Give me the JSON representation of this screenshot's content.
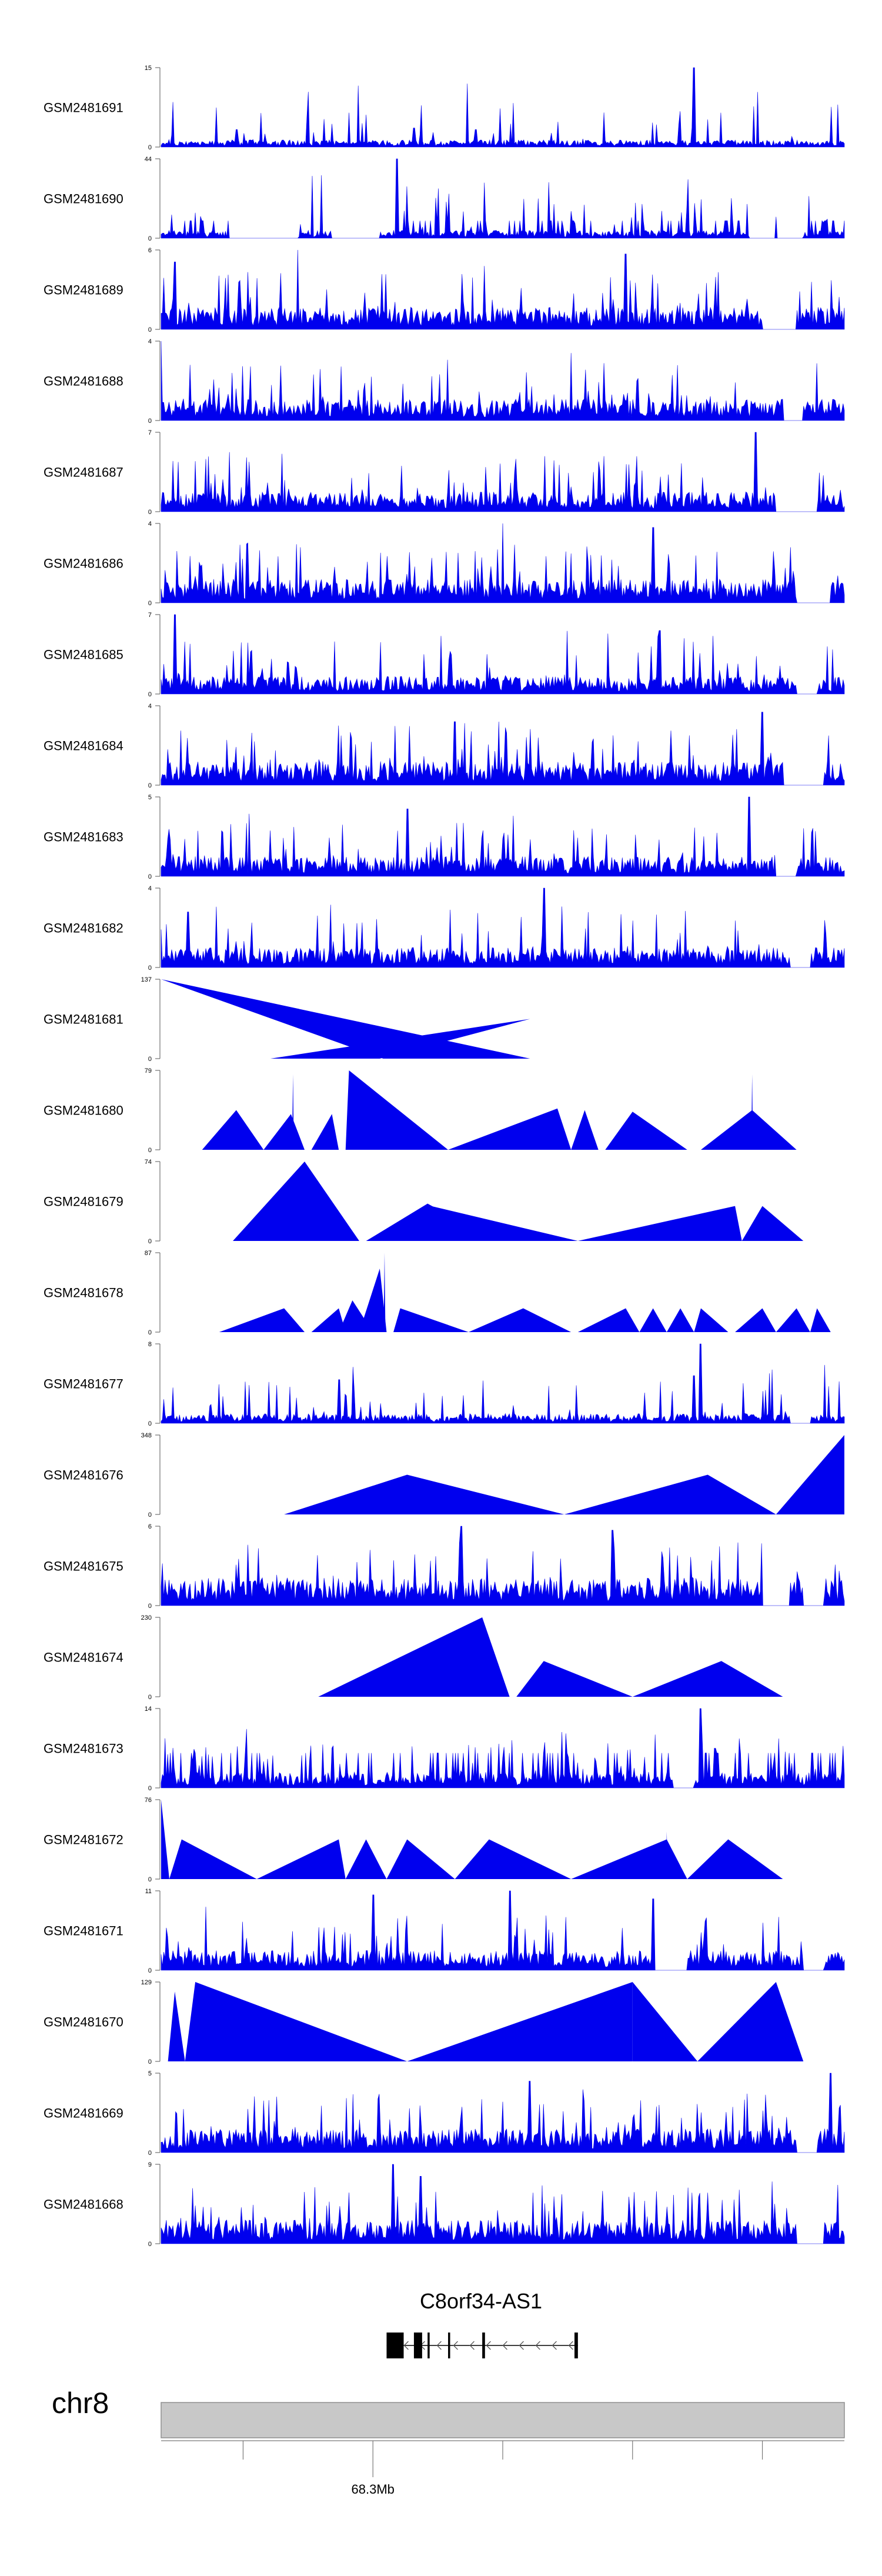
{
  "chart_data": {
    "type": "area",
    "colors": {
      "signal": "#0000ee",
      "axis": "#555555",
      "ideogram": "#c8c8c8"
    },
    "tracks": [
      {
        "name": "GSM2481691",
        "ylim": [
          0,
          15
        ],
        "mode": "dense",
        "baseline": 0.09,
        "peaks": [
          [
            0.78,
            1.0
          ],
          [
            0.37,
            0.24
          ],
          [
            0.11,
            0.22
          ],
          [
            0.46,
            0.22
          ]
        ]
      },
      {
        "name": "GSM2481690",
        "ylim": [
          0,
          44
        ],
        "mode": "dense-tent",
        "baseline": 0.1,
        "peaks": [
          [
            0.345,
            1.0
          ],
          [
            0.05,
            0.32
          ],
          [
            0.9,
            0.27
          ]
        ],
        "gaps": [
          [
            0.1,
            0.2
          ],
          [
            0.25,
            0.32
          ],
          [
            0.86,
            0.94
          ]
        ]
      },
      {
        "name": "GSM2481689",
        "ylim": [
          0,
          6
        ],
        "mode": "dense",
        "baseline": 0.28,
        "peaks": [
          [
            0.2,
            1.0
          ],
          [
            0.68,
            0.95
          ],
          [
            0.02,
            0.85
          ]
        ],
        "gaps": [
          [
            0.88,
            0.93
          ]
        ]
      },
      {
        "name": "GSM2481688",
        "ylim": [
          0,
          4
        ],
        "mode": "dense",
        "baseline": 0.27,
        "peaks": [
          [
            0.0,
            1.0
          ],
          [
            0.6,
            0.85
          ]
        ],
        "gaps": [
          [
            0.91,
            0.94
          ]
        ]
      },
      {
        "name": "GSM2481687",
        "ylim": [
          0,
          7
        ],
        "mode": "dense",
        "baseline": 0.25,
        "peaks": [
          [
            0.87,
            1.0
          ],
          [
            0.1,
            0.75
          ]
        ],
        "gaps": [
          [
            0.9,
            0.96
          ]
        ]
      },
      {
        "name": "GSM2481686",
        "ylim": [
          0,
          4
        ],
        "mode": "dense",
        "baseline": 0.3,
        "peaks": [
          [
            0.5,
            1.0
          ],
          [
            0.72,
            0.95
          ]
        ],
        "gaps": [
          [
            0.93,
            0.98
          ]
        ]
      },
      {
        "name": "GSM2481685",
        "ylim": [
          0,
          7
        ],
        "mode": "dense",
        "baseline": 0.22,
        "peaks": [
          [
            0.73,
            0.8
          ],
          [
            0.02,
            1.0
          ]
        ],
        "gaps": [
          [
            0.93,
            0.96
          ]
        ]
      },
      {
        "name": "GSM2481684",
        "ylim": [
          0,
          4
        ],
        "mode": "dense",
        "baseline": 0.3,
        "peaks": [
          [
            0.88,
            0.92
          ],
          [
            0.43,
            0.8
          ]
        ],
        "gaps": [
          [
            0.91,
            0.97
          ]
        ]
      },
      {
        "name": "GSM2481683",
        "ylim": [
          0,
          5
        ],
        "mode": "dense",
        "baseline": 0.25,
        "peaks": [
          [
            0.86,
            1.0
          ],
          [
            0.36,
            0.85
          ]
        ],
        "gaps": [
          [
            0.9,
            0.93
          ]
        ]
      },
      {
        "name": "GSM2481682",
        "ylim": [
          0,
          4
        ],
        "mode": "dense",
        "baseline": 0.25,
        "peaks": [
          [
            0.56,
            1.0
          ],
          [
            0.04,
            0.7
          ]
        ],
        "gaps": [
          [
            0.92,
            0.95
          ]
        ]
      },
      {
        "name": "GSM2481681",
        "ylim": [
          0,
          137
        ],
        "mode": "tents",
        "tents": [
          [
            0.16,
            0.32,
            0.54,
            0.5
          ],
          [
            0.325,
            0.54,
            0.0,
            1.0
          ],
          [
            0.54,
            0.76,
            0.52,
            0.0
          ],
          [
            0.83,
            0.95,
            0.45,
            0.0
          ]
        ]
      },
      {
        "name": "GSM2481680",
        "ylim": [
          0,
          79
        ],
        "mode": "tents",
        "tents": [
          [
            0.06,
            0.15,
            0.11,
            0.5
          ],
          [
            0.15,
            0.21,
            0.19,
            0.45
          ],
          [
            0.193,
            0.193,
            0.193,
            0.95
          ],
          [
            0.22,
            0.26,
            0.25,
            0.45
          ],
          [
            0.27,
            0.42,
            0.275,
            1.0
          ],
          [
            0.42,
            0.6,
            0.58,
            0.52
          ],
          [
            0.6,
            0.64,
            0.62,
            0.5
          ],
          [
            0.65,
            0.77,
            0.69,
            0.48
          ],
          [
            0.79,
            0.93,
            0.865,
            0.5
          ],
          [
            0.865,
            0.865,
            0.865,
            0.95
          ]
        ]
      },
      {
        "name": "GSM2481679",
        "ylim": [
          0,
          74
        ],
        "mode": "tents",
        "tents": [
          [
            0.105,
            0.29,
            0.21,
            1.0
          ],
          [
            0.3,
            0.49,
            0.39,
            0.47
          ],
          [
            0.39,
            0.61,
            0.39,
            0.45
          ],
          [
            0.61,
            0.85,
            0.84,
            0.44
          ],
          [
            0.85,
            0.94,
            0.88,
            0.44
          ]
        ]
      },
      {
        "name": "GSM2481678",
        "ylim": [
          0,
          87
        ],
        "mode": "tents",
        "tents": [
          [
            0.085,
            0.21,
            0.18,
            0.3
          ],
          [
            0.22,
            0.27,
            0.26,
            0.3
          ],
          [
            0.26,
            0.31,
            0.28,
            0.4
          ],
          [
            0.29,
            0.33,
            0.32,
            0.8
          ],
          [
            0.327,
            0.327,
            0.327,
            1.0
          ],
          [
            0.34,
            0.45,
            0.35,
            0.3
          ],
          [
            0.45,
            0.6,
            0.53,
            0.3
          ],
          [
            0.61,
            0.7,
            0.68,
            0.3
          ],
          [
            0.7,
            0.74,
            0.72,
            0.3
          ],
          [
            0.74,
            0.78,
            0.76,
            0.3
          ],
          [
            0.78,
            0.83,
            0.79,
            0.3
          ],
          [
            0.84,
            0.9,
            0.88,
            0.3
          ],
          [
            0.9,
            0.95,
            0.93,
            0.3
          ],
          [
            0.95,
            0.98,
            0.96,
            0.3
          ]
        ]
      },
      {
        "name": "GSM2481677",
        "ylim": [
          0,
          8
        ],
        "mode": "dense",
        "baseline": 0.12,
        "peaks": [
          [
            0.79,
            1.0
          ],
          [
            0.26,
            0.55
          ],
          [
            0.78,
            0.6
          ]
        ],
        "gaps": [
          [
            0.92,
            0.95
          ]
        ]
      },
      {
        "name": "GSM2481676",
        "ylim": [
          0,
          348
        ],
        "mode": "tents",
        "tents": [
          [
            0.18,
            0.59,
            0.36,
            0.5
          ],
          [
            0.59,
            0.9,
            0.8,
            0.5
          ],
          [
            0.9,
            1.0,
            1.0,
            1.0
          ]
        ]
      },
      {
        "name": "GSM2481675",
        "ylim": [
          0,
          6
        ],
        "mode": "dense",
        "baseline": 0.35,
        "peaks": [
          [
            0.44,
            1.0
          ],
          [
            0.66,
            0.95
          ]
        ],
        "gaps": [
          [
            0.88,
            0.92
          ],
          [
            0.94,
            0.97
          ]
        ]
      },
      {
        "name": "GSM2481674",
        "ylim": [
          0,
          230
        ],
        "mode": "tents",
        "tents": [
          [
            0.23,
            0.51,
            0.47,
            1.0
          ],
          [
            0.52,
            0.69,
            0.56,
            0.45
          ],
          [
            0.69,
            0.91,
            0.82,
            0.45
          ]
        ]
      },
      {
        "name": "GSM2481673",
        "ylim": [
          0,
          14
        ],
        "mode": "dense-tent",
        "baseline": 0.2,
        "peaks": [
          [
            0.79,
            1.0
          ],
          [
            0.81,
            0.5
          ]
        ],
        "gaps": [
          [
            0.75,
            0.78
          ]
        ]
      },
      {
        "name": "GSM2481672",
        "ylim": [
          0,
          76
        ],
        "mode": "tents",
        "tents": [
          [
            0.0,
            0.012,
            0.0,
            1.0
          ],
          [
            0.012,
            0.14,
            0.03,
            0.5
          ],
          [
            0.14,
            0.27,
            0.26,
            0.5
          ],
          [
            0.27,
            0.33,
            0.3,
            0.5
          ],
          [
            0.33,
            0.43,
            0.36,
            0.5
          ],
          [
            0.43,
            0.6,
            0.48,
            0.5
          ],
          [
            0.6,
            0.77,
            0.74,
            0.5
          ],
          [
            0.74,
            0.74,
            0.74,
            0.6
          ],
          [
            0.77,
            0.91,
            0.83,
            0.5
          ]
        ]
      },
      {
        "name": "GSM2481671",
        "ylim": [
          0,
          11
        ],
        "mode": "dense",
        "baseline": 0.25,
        "peaks": [
          [
            0.51,
            1.0
          ],
          [
            0.31,
            0.95
          ],
          [
            0.72,
            0.9
          ]
        ],
        "gaps": [
          [
            0.72,
            0.77
          ],
          [
            0.94,
            0.97
          ]
        ]
      },
      {
        "name": "GSM2481670",
        "ylim": [
          0,
          129
        ],
        "mode": "tents",
        "tents": [
          [
            0.01,
            0.035,
            0.02,
            0.88
          ],
          [
            0.035,
            0.36,
            0.05,
            1.0
          ],
          [
            0.36,
            0.69,
            0.69,
            1.0
          ],
          [
            0.69,
            0.785,
            0.69,
            1.0
          ],
          [
            0.785,
            0.94,
            0.9,
            1.0
          ]
        ]
      },
      {
        "name": "GSM2481669",
        "ylim": [
          0,
          5
        ],
        "mode": "dense",
        "baseline": 0.3,
        "peaks": [
          [
            0.98,
            1.0
          ],
          [
            0.54,
            0.9
          ]
        ],
        "gaps": [
          [
            0.93,
            0.96
          ]
        ]
      },
      {
        "name": "GSM2481668",
        "ylim": [
          0,
          9
        ],
        "mode": "dense",
        "baseline": 0.3,
        "peaks": [
          [
            0.34,
            1.0
          ],
          [
            0.38,
            0.85
          ]
        ],
        "gaps": [
          [
            0.93,
            0.97
          ]
        ]
      }
    ],
    "gene": {
      "name": "C8orf34-AS1",
      "strand": "-",
      "span": [
        0.33,
        0.61
      ],
      "exons": [
        [
          0.33,
          0.355
        ],
        [
          0.37,
          0.382
        ],
        [
          0.39,
          0.393
        ],
        [
          0.42,
          0.423
        ],
        [
          0.47,
          0.474
        ],
        [
          0.605,
          0.61
        ]
      ]
    },
    "chromosome": "chr8",
    "position_label": "68.3Mb",
    "ticks": [
      0.12,
      0.31,
      0.5,
      0.69,
      0.88
    ],
    "labelled_tick": 0.31
  }
}
